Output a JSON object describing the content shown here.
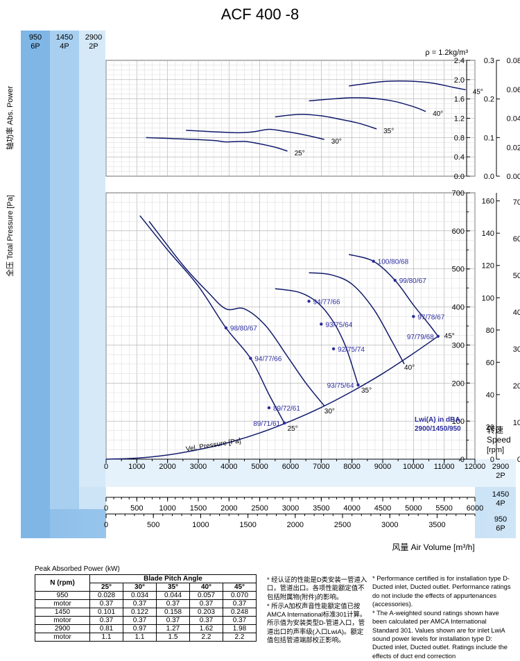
{
  "page_title": "ACF 400 -8",
  "density_note": "ρ = 1.2kg/m³",
  "speed_columns": [
    {
      "rpm": "950",
      "poles": "6P"
    },
    {
      "rpm": "1450",
      "poles": "4P"
    },
    {
      "rpm": "2900",
      "poles": "2P"
    }
  ],
  "speed_label": {
    "cn": "转速",
    "en": "Speed",
    "unit": "[rpm]"
  },
  "chart_data": [
    {
      "type": "line",
      "name": "power",
      "ylabel": "轴功率 Abs. Power",
      "ylim": [
        0,
        2.4
      ],
      "yticks_2900": [
        0.0,
        0.4,
        0.8,
        1.2,
        1.6,
        2.0,
        2.4
      ],
      "yticks_1450": [
        "0.0",
        "0.1",
        "0.2",
        "0.3"
      ],
      "yticks_950": [
        "0.00",
        "0.02",
        "0.04",
        "0.06",
        "0.08"
      ],
      "xlim": [
        0,
        12000
      ],
      "grid": true,
      "series": [
        {
          "name": "25°",
          "points": [
            [
              1300,
              0.8
            ],
            [
              2500,
              0.77
            ],
            [
              3500,
              0.74
            ],
            [
              3900,
              0.71
            ],
            [
              4500,
              0.72
            ],
            [
              5000,
              0.67
            ],
            [
              5500,
              0.6
            ],
            [
              5900,
              0.52
            ]
          ]
        },
        {
          "name": "30°",
          "points": [
            [
              2600,
              0.95
            ],
            [
              3500,
              0.92
            ],
            [
              4300,
              0.9
            ],
            [
              4800,
              0.92
            ],
            [
              5300,
              0.97
            ],
            [
              5800,
              0.93
            ],
            [
              6500,
              0.85
            ],
            [
              7100,
              0.76
            ]
          ]
        },
        {
          "name": "35°",
          "points": [
            [
              5500,
              1.23
            ],
            [
              6300,
              1.28
            ],
            [
              7000,
              1.25
            ],
            [
              7600,
              1.18
            ],
            [
              8200,
              1.1
            ],
            [
              8800,
              0.98
            ]
          ]
        },
        {
          "name": "40°",
          "points": [
            [
              6600,
              1.56
            ],
            [
              7800,
              1.62
            ],
            [
              8500,
              1.62
            ],
            [
              9300,
              1.56
            ],
            [
              10000,
              1.44
            ],
            [
              10400,
              1.34
            ]
          ]
        },
        {
          "name": "45°",
          "points": [
            [
              7900,
              1.87
            ],
            [
              9000,
              1.96
            ],
            [
              9800,
              1.97
            ],
            [
              10600,
              1.93
            ],
            [
              11300,
              1.84
            ],
            [
              11700,
              1.79
            ]
          ]
        }
      ]
    },
    {
      "type": "line",
      "name": "pressure",
      "ylabel": "全压 Total Pressure [Pa]",
      "ylim": [
        0,
        700
      ],
      "yticks_2900": [
        0,
        100,
        200,
        300,
        400,
        500,
        600,
        700
      ],
      "yticks_1450": [
        0,
        20,
        40,
        60,
        80,
        100,
        120,
        140,
        160
      ],
      "yticks_950": [
        0,
        10,
        20,
        30,
        40,
        50,
        60,
        70
      ],
      "xlabel": "风量 Air Volume [m³/h]",
      "xlim": [
        0,
        12000
      ],
      "xticks_2900": [
        0,
        1000,
        2000,
        3000,
        4000,
        5000,
        6000,
        7000,
        8000,
        9000,
        10000,
        11000,
        12000
      ],
      "xticks_1450": [
        0,
        500,
        1000,
        1500,
        2000,
        2500,
        3000,
        3500,
        4000,
        4500,
        5000,
        5500,
        6000
      ],
      "xticks_950": [
        0,
        500,
        1000,
        1500,
        2000,
        2500,
        3000,
        3500
      ],
      "grid": true,
      "series": [
        {
          "name": "25°",
          "points": [
            [
              1100,
              640
            ],
            [
              2000,
              550
            ],
            [
              3000,
              455
            ],
            [
              3900,
              345
            ],
            [
              4700,
              265
            ],
            [
              5300,
              170
            ],
            [
              5800,
              95
            ]
          ]
        },
        {
          "name": "30°",
          "points": [
            [
              1400,
              625
            ],
            [
              2500,
              510
            ],
            [
              3300,
              440
            ],
            [
              3900,
              395
            ],
            [
              4500,
              395
            ],
            [
              5200,
              350
            ],
            [
              5900,
              270
            ],
            [
              6500,
              200
            ],
            [
              7100,
              140
            ]
          ]
        },
        {
          "name": "35°",
          "points": [
            [
              5500,
              448
            ],
            [
              6300,
              438
            ],
            [
              6900,
              410
            ],
            [
              7400,
              360
            ],
            [
              7800,
              295
            ],
            [
              8200,
              195
            ]
          ]
        },
        {
          "name": "40°",
          "points": [
            [
              6600,
              490
            ],
            [
              7300,
              485
            ],
            [
              8000,
              460
            ],
            [
              8700,
              395
            ],
            [
              9300,
              310
            ],
            [
              9700,
              250
            ]
          ]
        },
        {
          "name": "45°",
          "points": [
            [
              7900,
              538
            ],
            [
              8700,
              520
            ],
            [
              9400,
              470
            ],
            [
              10000,
              405
            ],
            [
              10500,
              355
            ],
            [
              10800,
              323
            ]
          ]
        },
        {
          "name": "Vel. Pressure [Pa]",
          "points": [
            [
              0,
              0
            ],
            [
              1000,
              2.8
            ],
            [
              2000,
              11
            ],
            [
              3000,
              25
            ],
            [
              4000,
              44
            ],
            [
              5000,
              69
            ],
            [
              6000,
              100
            ],
            [
              7000,
              136
            ],
            [
              8000,
              178
            ],
            [
              9000,
              225
            ],
            [
              10000,
              278
            ],
            [
              10800,
              323
            ]
          ]
        }
      ],
      "sound_labels": [
        {
          "text": "98/80/67",
          "x": 3900,
          "y": 345
        },
        {
          "text": "94/77/66",
          "x": 4700,
          "y": 265
        },
        {
          "text": "89/72/61",
          "x": 5300,
          "y": 135
        },
        {
          "text": "89/71/61",
          "x": 5800,
          "y": 95
        },
        {
          "text": "94/77/66",
          "x": 6600,
          "y": 415
        },
        {
          "text": "93/75/64",
          "x": 7000,
          "y": 355
        },
        {
          "text": "92/75/74",
          "x": 7400,
          "y": 290
        },
        {
          "text": "93/75/64",
          "x": 8200,
          "y": 195
        },
        {
          "text": "100/80/68",
          "x": 8700,
          "y": 520
        },
        {
          "text": "99/80/67",
          "x": 9400,
          "y": 470
        },
        {
          "text": "97/78/67",
          "x": 10000,
          "y": 375
        },
        {
          "text": "97/79/68",
          "x": 10800,
          "y": 323
        }
      ],
      "angle_labels": [
        {
          "text": "25°",
          "x": 5900,
          "y": 75
        },
        {
          "text": "30°",
          "x": 7100,
          "y": 120
        },
        {
          "text": "35°",
          "x": 8300,
          "y": 175
        },
        {
          "text": "40°",
          "x": 9700,
          "y": 235
        },
        {
          "text": "45°",
          "x": 11000,
          "y": 318
        }
      ],
      "legend_text": [
        "Lwi(A) in dBA",
        "2900/1450/950"
      ]
    }
  ],
  "power_table": {
    "caption": "Peak Absorbed Power (kW)",
    "col_header": "N (rpm)",
    "group_header": "Blade Pitch Angle",
    "angles": [
      "25°",
      "30°",
      "35°",
      "40°",
      "45°"
    ],
    "rows": [
      {
        "label": "950",
        "values": [
          "0.028",
          "0.034",
          "0.044",
          "0.057",
          "0.070"
        ]
      },
      {
        "label": "motor",
        "values": [
          "0.37",
          "0.37",
          "0.37",
          "0.37",
          "0.37"
        ]
      },
      {
        "label": "1450",
        "values": [
          "0.101",
          "0.122",
          "0.158",
          "0.203",
          "0.248"
        ]
      },
      {
        "label": "motor",
        "values": [
          "0.37",
          "0.37",
          "0.37",
          "0.37",
          "0.37"
        ]
      },
      {
        "label": "2900",
        "values": [
          "0.81",
          "0.97",
          "1.27",
          "1.62",
          "1.98"
        ]
      },
      {
        "label": "motor",
        "values": [
          "1.1",
          "1.1",
          "1.5",
          "2.2",
          "2.2"
        ]
      }
    ]
  },
  "notes_cn": [
    "* 经认证的性能是D类安装一管道入口，管道出口。各项性能额定值不包括附属物(附件)的影响。",
    "* 所示A加权声音性能额定值已按AMCA International标准301计算。所示值为安装类型D-管道入口，管道出口的声率级(入口LwiA)。额定值包括管道端部校正影响。"
  ],
  "notes_en": [
    "* Performance certified is for installation type D-Ducted inlet, Ducted outlet. Performance ratings do not include the effects of appurtenances (accessories).",
    "* The A-weighted sound ratings shown have been calculated per AMCA International Standard 301. Values shown are for inlet LwiA sound power levels for installation type D: Ducted inlet, Ducted outlet. Ratings include the effects of duct end correction"
  ]
}
